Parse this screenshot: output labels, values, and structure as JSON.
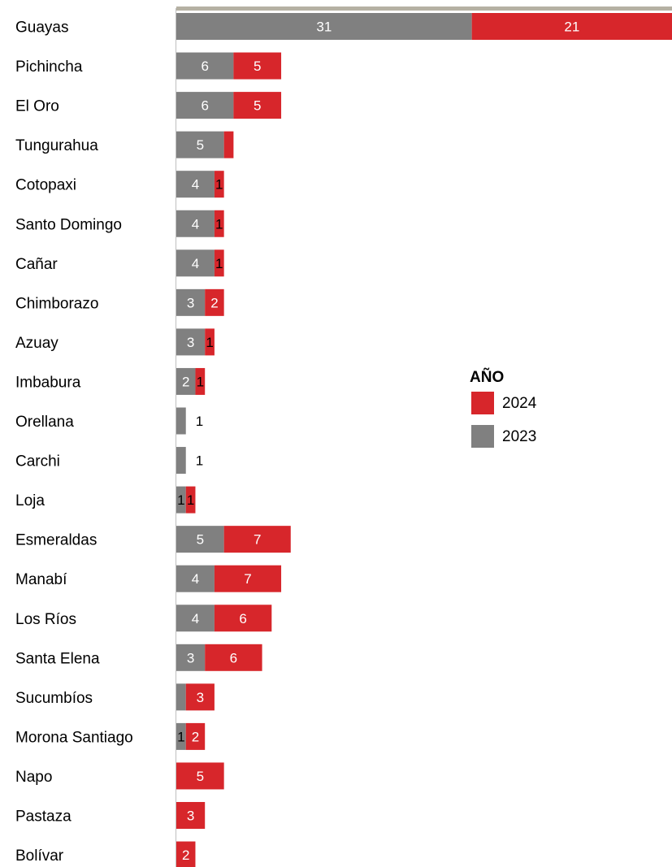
{
  "colors": {
    "series_2023": "#808080",
    "series_2024": "#d7262b",
    "label_inside": "#ffffff",
    "label_dark": "#000000",
    "top_rule": "#b5b1a3"
  },
  "legend": {
    "title": "AÑO",
    "items": [
      {
        "label": "2024",
        "color": "#d7262b"
      },
      {
        "label": "2023",
        "color": "#808080"
      }
    ]
  },
  "chart_data": {
    "type": "bar",
    "orientation": "horizontal",
    "stacked": true,
    "categories": [
      "Guayas",
      "Pichincha",
      "El Oro",
      "Tungurahua",
      "Cotopaxi",
      "Santo Domingo",
      "Cañar",
      "Chimborazo",
      "Azuay",
      "Imbabura",
      "Orellana",
      "Carchi",
      "Loja",
      "Esmeraldas",
      "Manabí",
      "Los Ríos",
      "Santa Elena",
      "Sucumbíos",
      "Morona Santiago",
      "Napo",
      "Pastaza",
      "Bolívar"
    ],
    "series": [
      {
        "name": "2023",
        "values": [
          31,
          6,
          6,
          5,
          4,
          4,
          4,
          3,
          3,
          2,
          1,
          1,
          1,
          5,
          4,
          4,
          3,
          1,
          1,
          0,
          0,
          0
        ],
        "labels": [
          "31",
          "6",
          "6",
          "5",
          "4",
          "4",
          "4",
          "3",
          "3",
          "2",
          "1",
          "1",
          "1",
          "5",
          "4",
          "4",
          "3",
          "",
          "1",
          "",
          "",
          ""
        ]
      },
      {
        "name": "2024",
        "values": [
          21,
          5,
          5,
          1,
          1,
          1,
          1,
          2,
          1,
          1,
          0,
          0,
          1,
          7,
          7,
          6,
          6,
          3,
          2,
          5,
          3,
          2
        ],
        "labels": [
          "21",
          "5",
          "5",
          "",
          "1",
          "1",
          "1",
          "2",
          "1",
          "1",
          "",
          "",
          "1",
          "7",
          "7",
          "6",
          "6",
          "3",
          "2",
          "5",
          "3",
          "2"
        ]
      }
    ],
    "xlim": [
      0,
      52
    ],
    "grid": false,
    "legend_position": "right"
  }
}
